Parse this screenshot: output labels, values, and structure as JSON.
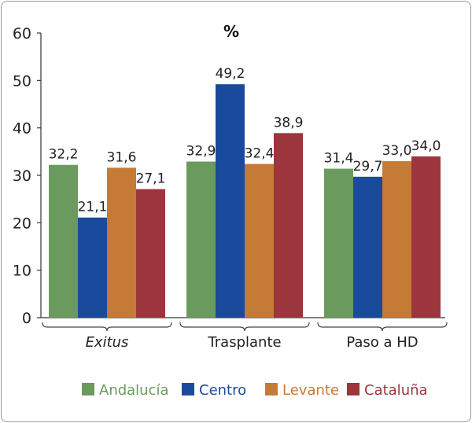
{
  "chart_data": {
    "type": "bar",
    "title": "%",
    "categories": [
      "Exitus",
      "Trasplante",
      "Paso a HD"
    ],
    "series": [
      {
        "name": "Andalucía",
        "color": "#6a9a5d",
        "values": [
          32.2,
          32.9,
          31.4
        ],
        "labels": [
          "32,2",
          "32,9",
          "31,4"
        ]
      },
      {
        "name": "Centro",
        "color": "#1a4a9c",
        "values": [
          21.1,
          49.2,
          29.7
        ],
        "labels": [
          "21,1",
          "49,2",
          "29,7"
        ]
      },
      {
        "name": "Levante",
        "color": "#c57a35",
        "values": [
          31.6,
          32.4,
          33.0
        ],
        "labels": [
          "31,6",
          "32,4",
          "33,0"
        ]
      },
      {
        "name": "Cataluña",
        "color": "#9d353d",
        "values": [
          27.1,
          38.9,
          34.0
        ],
        "labels": [
          "27,1",
          "38,9",
          "34,0"
        ]
      }
    ],
    "ylim": [
      0,
      60
    ],
    "yticks": [
      "0",
      "10",
      "20",
      "30",
      "40",
      "50",
      "60"
    ],
    "xlabel": "",
    "ylabel": "",
    "grid": false,
    "legend": "bottom"
  }
}
